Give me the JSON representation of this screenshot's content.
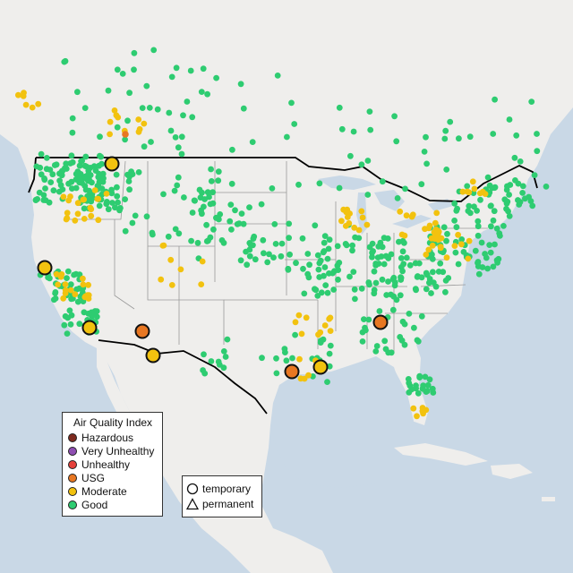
{
  "legend": {
    "title": "Air Quality Index",
    "items": [
      {
        "label": "Hazardous",
        "color": "#7e2a1e"
      },
      {
        "label": "Very Unhealthy",
        "color": "#8f4fb2"
      },
      {
        "label": "Unhealthy",
        "color": "#e5403a"
      },
      {
        "label": "USG",
        "color": "#e87722"
      },
      {
        "label": "Moderate",
        "color": "#f2c20f"
      },
      {
        "label": "Good",
        "color": "#2ecc71"
      }
    ]
  },
  "shape_legend": {
    "temporary": "temporary",
    "permanent": "permanent"
  },
  "colors": {
    "water": "#c9d8e6",
    "land": "#efeeec",
    "border": "#000000",
    "state_line": "#9a9a9a"
  },
  "icons": [
    "circle-icon",
    "triangle-icon"
  ]
}
